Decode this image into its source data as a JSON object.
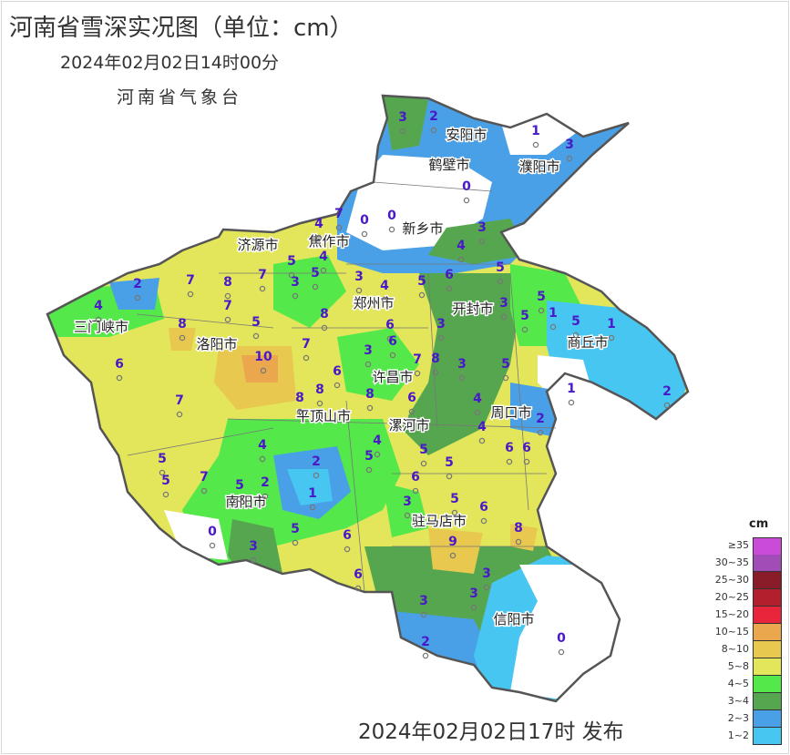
{
  "title": "河南省雪深实况图（单位：cm）",
  "subtitle": "2024年02月02日14时00分",
  "organization": "河南省气象台",
  "publish_time": "2024年02月02日17时 发布",
  "legend": {
    "unit": "cm",
    "items": [
      {
        "label": "≥35",
        "color": "#c94bd8"
      },
      {
        "label": "30~35",
        "color": "#a24cb8"
      },
      {
        "label": "25~30",
        "color": "#8a1c2a"
      },
      {
        "label": "20~25",
        "color": "#b41f2e"
      },
      {
        "label": "15~20",
        "color": "#e8253a"
      },
      {
        "label": "10~15",
        "color": "#eba74e"
      },
      {
        "label": "8~10",
        "color": "#e8c84e"
      },
      {
        "label": "5~8",
        "color": "#e3e65a"
      },
      {
        "label": "4~5",
        "color": "#54e84a"
      },
      {
        "label": "3~4",
        "color": "#56a650"
      },
      {
        "label": "2~3",
        "color": "#4aa0e6"
      },
      {
        "label": "1~2",
        "color": "#48c6f2"
      }
    ]
  },
  "cities": [
    "安阳市",
    "鹤壁市",
    "濮阳市",
    "新乡市",
    "焦作市",
    "济源市",
    "郑州市",
    "开封市",
    "三门峡市",
    "洛阳市",
    "商丘市",
    "许昌市",
    "平顶山市",
    "漯河市",
    "周口市",
    "南阳市",
    "驻马店市",
    "信阳市"
  ],
  "station_values": [
    3,
    2,
    1,
    3,
    0,
    0,
    0,
    3,
    4,
    7,
    4,
    5,
    4,
    5,
    3,
    7,
    8,
    7,
    2,
    4,
    7,
    3,
    4,
    5,
    6,
    5,
    5,
    5,
    5,
    1,
    1,
    3,
    8,
    5,
    8,
    6,
    6,
    3,
    7,
    3,
    10,
    8,
    3,
    7,
    6,
    6,
    5,
    8,
    8,
    6,
    1,
    4,
    2,
    7,
    8,
    2,
    4,
    4,
    5,
    5,
    6,
    6,
    4,
    5,
    5,
    7,
    5,
    2,
    2,
    1,
    5,
    6,
    3,
    5,
    6,
    0,
    5,
    6,
    8,
    3,
    9,
    6,
    3,
    3,
    3,
    0,
    2
  ]
}
